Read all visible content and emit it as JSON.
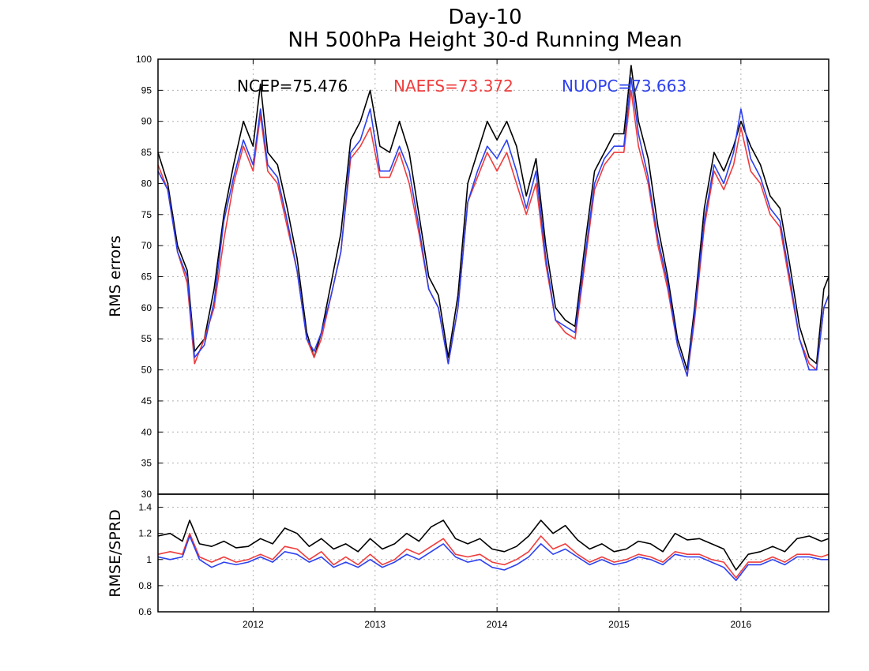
{
  "chart_data": [
    {
      "type": "line",
      "title": "Day-10",
      "subtitle": "NH 500hPa Height 30-d Running Mean",
      "xlabel": "",
      "ylabel": "RMS errors",
      "xlim": [
        2011.22,
        2016.72
      ],
      "ylim": [
        30,
        100
      ],
      "y_ticks": [
        30,
        35,
        40,
        45,
        50,
        55,
        60,
        65,
        70,
        75,
        80,
        85,
        90,
        95,
        100
      ],
      "x_ticks": [
        2012,
        2013,
        2014,
        2015,
        2016
      ],
      "x_tick_labels": [
        "2012",
        "2013",
        "2014",
        "2015",
        "2016"
      ],
      "grid": true,
      "legend": "top",
      "annotations": [
        {
          "text": "NCEP=75.476",
          "color": "#000000"
        },
        {
          "text": "NAEFS=73.372",
          "color": "#f03c3c"
        },
        {
          "text": "NUOPC=73.663",
          "color": "#2c40f0"
        }
      ],
      "series": [
        {
          "name": "NCEP",
          "color": "#000000",
          "x": [
            2011.22,
            2011.3,
            2011.38,
            2011.46,
            2011.52,
            2011.6,
            2011.68,
            2011.76,
            2011.84,
            2011.92,
            2012.0,
            2012.06,
            2012.12,
            2012.2,
            2012.28,
            2012.36,
            2012.44,
            2012.5,
            2012.56,
            2012.64,
            2012.72,
            2012.8,
            2012.88,
            2012.96,
            2013.04,
            2013.12,
            2013.2,
            2013.28,
            2013.36,
            2013.44,
            2013.52,
            2013.6,
            2013.68,
            2013.76,
            2013.84,
            2013.92,
            2014.0,
            2014.08,
            2014.16,
            2014.24,
            2014.32,
            2014.4,
            2014.48,
            2014.56,
            2014.64,
            2014.72,
            2014.8,
            2014.88,
            2014.96,
            2015.04,
            2015.1,
            2015.16,
            2015.24,
            2015.32,
            2015.4,
            2015.48,
            2015.56,
            2015.62,
            2015.7,
            2015.78,
            2015.86,
            2015.94,
            2016.0,
            2016.08,
            2016.16,
            2016.24,
            2016.32,
            2016.4,
            2016.48,
            2016.56,
            2016.62,
            2016.68,
            2016.72
          ],
          "values": [
            85,
            80,
            70,
            66,
            53,
            55,
            63,
            75,
            83,
            90,
            86,
            96,
            85,
            83,
            76,
            68,
            56,
            52,
            56,
            64,
            72,
            87,
            90,
            95,
            86,
            85,
            90,
            85,
            75,
            65,
            62,
            52,
            62,
            80,
            85,
            90,
            87,
            90,
            86,
            78,
            84,
            70,
            60,
            58,
            57,
            70,
            82,
            85,
            88,
            88,
            99,
            90,
            84,
            73,
            65,
            55,
            50,
            60,
            76,
            85,
            82,
            86,
            90,
            86,
            83,
            78,
            76,
            67,
            57,
            52,
            51,
            63,
            65
          ]
        },
        {
          "name": "NAEFS",
          "color": "#f03c3c",
          "x": [
            2011.22,
            2011.3,
            2011.38,
            2011.46,
            2011.52,
            2011.6,
            2011.68,
            2011.76,
            2011.84,
            2011.92,
            2012.0,
            2012.06,
            2012.12,
            2012.2,
            2012.28,
            2012.36,
            2012.44,
            2012.5,
            2012.56,
            2012.64,
            2012.72,
            2012.8,
            2012.88,
            2012.96,
            2013.04,
            2013.12,
            2013.2,
            2013.28,
            2013.36,
            2013.44,
            2013.52,
            2013.6,
            2013.68,
            2013.76,
            2013.84,
            2013.92,
            2014.0,
            2014.08,
            2014.16,
            2014.24,
            2014.32,
            2014.4,
            2014.48,
            2014.56,
            2014.64,
            2014.72,
            2014.8,
            2014.88,
            2014.96,
            2015.04,
            2015.1,
            2015.16,
            2015.24,
            2015.32,
            2015.4,
            2015.48,
            2015.56,
            2015.62,
            2015.7,
            2015.78,
            2015.86,
            2015.94,
            2016.0,
            2016.08,
            2016.16,
            2016.24,
            2016.32,
            2016.4,
            2016.48,
            2016.56,
            2016.62,
            2016.68,
            2016.72
          ],
          "values": [
            83,
            79,
            69,
            64,
            51,
            55,
            60,
            71,
            80,
            86,
            82,
            91,
            82,
            80,
            73,
            66,
            55,
            52,
            55,
            62,
            69,
            84,
            86,
            89,
            81,
            81,
            85,
            80,
            72,
            63,
            60,
            51,
            60,
            77,
            81,
            85,
            82,
            85,
            80,
            75,
            80,
            67,
            58,
            56,
            55,
            67,
            79,
            83,
            85,
            85,
            95,
            86,
            80,
            70,
            63,
            54,
            49,
            58,
            73,
            82,
            79,
            83,
            89,
            82,
            80,
            75,
            73,
            64,
            55,
            51,
            50,
            60,
            62
          ]
        },
        {
          "name": "NUOPC",
          "color": "#2c40f0",
          "x": [
            2011.22,
            2011.3,
            2011.38,
            2011.46,
            2011.52,
            2011.6,
            2011.68,
            2011.76,
            2011.84,
            2011.92,
            2012.0,
            2012.06,
            2012.12,
            2012.2,
            2012.28,
            2012.36,
            2012.44,
            2012.5,
            2012.56,
            2012.64,
            2012.72,
            2012.8,
            2012.88,
            2012.96,
            2013.04,
            2013.12,
            2013.2,
            2013.28,
            2013.36,
            2013.44,
            2013.52,
            2013.6,
            2013.68,
            2013.76,
            2013.84,
            2013.92,
            2014.0,
            2014.08,
            2014.16,
            2014.24,
            2014.32,
            2014.4,
            2014.48,
            2014.56,
            2014.64,
            2014.72,
            2014.8,
            2014.88,
            2014.96,
            2015.04,
            2015.1,
            2015.16,
            2015.24,
            2015.32,
            2015.4,
            2015.48,
            2015.56,
            2015.62,
            2015.7,
            2015.78,
            2015.86,
            2015.94,
            2016.0,
            2016.08,
            2016.16,
            2016.24,
            2016.32,
            2016.4,
            2016.48,
            2016.56,
            2016.62,
            2016.68,
            2016.72
          ],
          "values": [
            82,
            79,
            69,
            65,
            52,
            54,
            61,
            74,
            81,
            87,
            83,
            92,
            83,
            81,
            74,
            66,
            55,
            53,
            56,
            62,
            69,
            85,
            87,
            92,
            82,
            82,
            86,
            82,
            73,
            63,
            60,
            51,
            60,
            77,
            82,
            86,
            84,
            87,
            82,
            76,
            82,
            68,
            58,
            57,
            56,
            68,
            80,
            84,
            86,
            86,
            97,
            88,
            81,
            71,
            64,
            54,
            49,
            59,
            74,
            83,
            80,
            85,
            92,
            84,
            81,
            76,
            74,
            65,
            55,
            50,
            50,
            60,
            62
          ]
        }
      ]
    },
    {
      "type": "line",
      "xlabel": "",
      "ylabel": "RMSE/SPRD",
      "xlim": [
        2011.22,
        2016.72
      ],
      "ylim": [
        0.6,
        1.5
      ],
      "y_ticks": [
        0.6,
        0.8,
        1,
        1.2,
        1.4
      ],
      "y_tick_labels": [
        "0.6",
        "0.8",
        "1",
        "1.2",
        "1.4"
      ],
      "x_ticks": [
        2012,
        2013,
        2014,
        2015,
        2016
      ],
      "x_tick_labels": [
        "2012",
        "2013",
        "2014",
        "2015",
        "2016"
      ],
      "grid": true,
      "series": [
        {
          "name": "NCEP",
          "color": "#000000",
          "x": [
            2011.22,
            2011.32,
            2011.42,
            2011.48,
            2011.56,
            2011.66,
            2011.76,
            2011.86,
            2011.96,
            2012.06,
            2012.16,
            2012.26,
            2012.36,
            2012.46,
            2012.56,
            2012.66,
            2012.76,
            2012.86,
            2012.96,
            2013.06,
            2013.16,
            2013.26,
            2013.36,
            2013.46,
            2013.56,
            2013.66,
            2013.76,
            2013.86,
            2013.96,
            2014.06,
            2014.16,
            2014.26,
            2014.36,
            2014.46,
            2014.56,
            2014.66,
            2014.76,
            2014.86,
            2014.96,
            2015.06,
            2015.16,
            2015.26,
            2015.36,
            2015.46,
            2015.56,
            2015.66,
            2015.76,
            2015.86,
            2015.96,
            2016.06,
            2016.16,
            2016.26,
            2016.36,
            2016.46,
            2016.56,
            2016.66,
            2016.72
          ],
          "values": [
            1.18,
            1.2,
            1.14,
            1.3,
            1.12,
            1.1,
            1.14,
            1.09,
            1.1,
            1.16,
            1.12,
            1.24,
            1.2,
            1.1,
            1.16,
            1.08,
            1.12,
            1.06,
            1.16,
            1.08,
            1.12,
            1.2,
            1.14,
            1.25,
            1.3,
            1.16,
            1.12,
            1.16,
            1.08,
            1.06,
            1.1,
            1.18,
            1.3,
            1.2,
            1.26,
            1.15,
            1.08,
            1.12,
            1.06,
            1.08,
            1.14,
            1.12,
            1.06,
            1.2,
            1.15,
            1.16,
            1.12,
            1.08,
            0.92,
            1.04,
            1.06,
            1.1,
            1.06,
            1.16,
            1.18,
            1.14,
            1.16
          ]
        },
        {
          "name": "NAEFS",
          "color": "#f03c3c",
          "x": [
            2011.22,
            2011.32,
            2011.42,
            2011.48,
            2011.56,
            2011.66,
            2011.76,
            2011.86,
            2011.96,
            2012.06,
            2012.16,
            2012.26,
            2012.36,
            2012.46,
            2012.56,
            2012.66,
            2012.76,
            2012.86,
            2012.96,
            2013.06,
            2013.16,
            2013.26,
            2013.36,
            2013.46,
            2013.56,
            2013.66,
            2013.76,
            2013.86,
            2013.96,
            2014.06,
            2014.16,
            2014.26,
            2014.36,
            2014.46,
            2014.56,
            2014.66,
            2014.76,
            2014.86,
            2014.96,
            2015.06,
            2015.16,
            2015.26,
            2015.36,
            2015.46,
            2015.56,
            2015.66,
            2015.76,
            2015.86,
            2015.96,
            2016.06,
            2016.16,
            2016.26,
            2016.36,
            2016.46,
            2016.56,
            2016.66,
            2016.72
          ],
          "values": [
            1.04,
            1.06,
            1.04,
            1.2,
            1.02,
            0.98,
            1.02,
            0.98,
            1.0,
            1.04,
            1.0,
            1.1,
            1.08,
            1.0,
            1.06,
            0.96,
            1.02,
            0.96,
            1.04,
            0.96,
            1.0,
            1.08,
            1.04,
            1.1,
            1.16,
            1.04,
            1.02,
            1.04,
            0.98,
            0.96,
            1.0,
            1.06,
            1.18,
            1.08,
            1.12,
            1.04,
            0.98,
            1.02,
            0.98,
            1.0,
            1.04,
            1.02,
            0.98,
            1.06,
            1.04,
            1.04,
            1.0,
            0.98,
            0.86,
            0.98,
            0.98,
            1.02,
            0.98,
            1.04,
            1.04,
            1.02,
            1.04
          ]
        },
        {
          "name": "NUOPC",
          "color": "#2c40f0",
          "x": [
            2011.22,
            2011.32,
            2011.42,
            2011.48,
            2011.56,
            2011.66,
            2011.76,
            2011.86,
            2011.96,
            2012.06,
            2012.16,
            2012.26,
            2012.36,
            2012.46,
            2012.56,
            2012.66,
            2012.76,
            2012.86,
            2012.96,
            2013.06,
            2013.16,
            2013.26,
            2013.36,
            2013.46,
            2013.56,
            2013.66,
            2013.76,
            2013.86,
            2013.96,
            2014.06,
            2014.16,
            2014.26,
            2014.36,
            2014.46,
            2014.56,
            2014.66,
            2014.76,
            2014.86,
            2014.96,
            2015.06,
            2015.16,
            2015.26,
            2015.36,
            2015.46,
            2015.56,
            2015.66,
            2015.76,
            2015.86,
            2015.96,
            2016.06,
            2016.16,
            2016.26,
            2016.36,
            2016.46,
            2016.56,
            2016.66,
            2016.72
          ],
          "values": [
            1.02,
            1.0,
            1.02,
            1.18,
            1.0,
            0.94,
            0.98,
            0.96,
            0.98,
            1.02,
            0.98,
            1.06,
            1.04,
            0.98,
            1.02,
            0.94,
            0.98,
            0.94,
            1.0,
            0.94,
            0.98,
            1.04,
            1.0,
            1.06,
            1.12,
            1.02,
            0.98,
            1.0,
            0.94,
            0.92,
            0.96,
            1.02,
            1.12,
            1.04,
            1.08,
            1.02,
            0.96,
            1.0,
            0.96,
            0.98,
            1.02,
            1.0,
            0.96,
            1.04,
            1.02,
            1.02,
            0.98,
            0.94,
            0.84,
            0.96,
            0.96,
            1.0,
            0.96,
            1.02,
            1.02,
            1.0,
            1.0
          ]
        }
      ]
    }
  ]
}
